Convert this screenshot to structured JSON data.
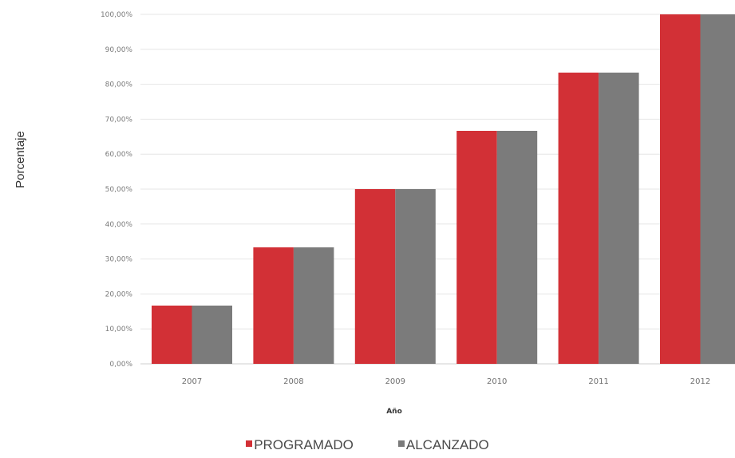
{
  "chart_data": {
    "type": "bar",
    "categories": [
      "2007",
      "2008",
      "2009",
      "2010",
      "2011",
      "2012"
    ],
    "series": [
      {
        "name": "PROGRAMADO",
        "color": "#d23036",
        "values": [
          16.67,
          33.33,
          50.0,
          66.67,
          83.33,
          100.0
        ]
      },
      {
        "name": "ALCANZADO",
        "color": "#7b7b7b",
        "values": [
          16.67,
          33.33,
          50.0,
          66.67,
          83.33,
          100.0
        ]
      }
    ],
    "xlabel": "Año",
    "ylabel": "Porcentaje",
    "ylim": [
      0,
      100
    ],
    "yticks": [
      "0,00%",
      "10,00%",
      "20,00%",
      "30,00%",
      "40,00%",
      "50,00%",
      "60,00%",
      "70,00%",
      "80,00%",
      "90,00%",
      "100,00%"
    ],
    "grid": true,
    "legend_position": "bottom"
  }
}
